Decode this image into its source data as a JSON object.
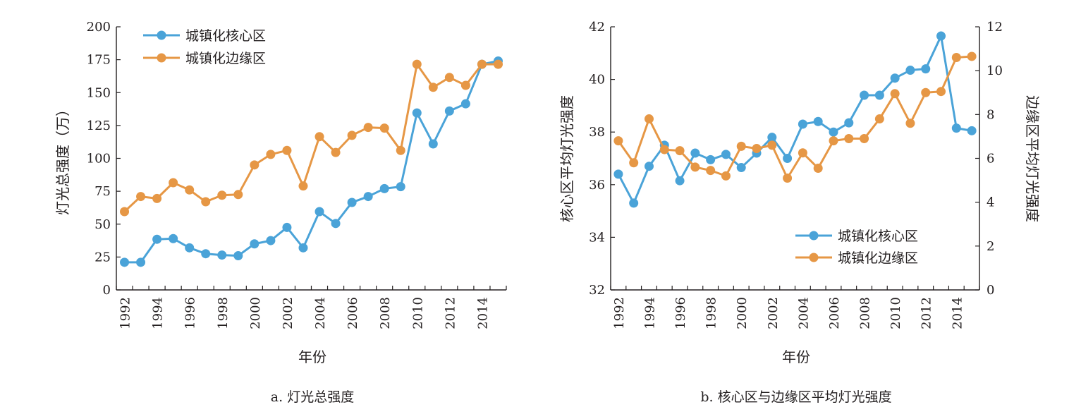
{
  "colors": {
    "core": "#4aa3d8",
    "edge": "#e69745",
    "axis": "#231f20"
  },
  "chart_data": [
    {
      "type": "line",
      "caption": "a. 灯光总强度",
      "xlabel": "年份",
      "ylabel": "灯光总强度（万）",
      "x": [
        1992,
        1993,
        1994,
        1995,
        1996,
        1997,
        1998,
        1999,
        2000,
        2001,
        2002,
        2003,
        2004,
        2005,
        2006,
        2007,
        2008,
        2009,
        2010,
        2011,
        2012,
        2013,
        2014,
        2015
      ],
      "x_tick_labels": [
        "1992",
        "1994",
        "1996",
        "1998",
        "2000",
        "2002",
        "2004",
        "2006",
        "2008",
        "2010",
        "2012",
        "2014"
      ],
      "ylim": [
        0,
        200
      ],
      "y_tick_labels": [
        "0",
        "25",
        "50",
        "75",
        "100",
        "125",
        "150",
        "175",
        "200"
      ],
      "grid": false,
      "legend_position": "top-left",
      "series": [
        {
          "name": "城镇化核心区",
          "color_key": "core",
          "axis": "left",
          "values": [
            21,
            21,
            38.5,
            39,
            32,
            27.5,
            26.5,
            26,
            35,
            37.5,
            47.5,
            32,
            59.5,
            50.5,
            66.5,
            71,
            77,
            78.5,
            134.5,
            111,
            136,
            141.5,
            171.5,
            174
          ]
        },
        {
          "name": "城镇化边缘区",
          "color_key": "edge",
          "axis": "left",
          "values": [
            59.5,
            71,
            69.5,
            81.5,
            76,
            67,
            72,
            72.5,
            95,
            103,
            106,
            79,
            116.5,
            104.5,
            117.5,
            123.5,
            123,
            106,
            171.5,
            154,
            161.5,
            155.5,
            171.5,
            171.5
          ]
        }
      ]
    },
    {
      "type": "line",
      "caption": "b. 核心区与边缘区平均灯光强度",
      "xlabel": "年份",
      "ylabel": "核心区平均灯光强度",
      "y2label": "边缘区平均灯光强度",
      "x": [
        1992,
        1993,
        1994,
        1995,
        1996,
        1997,
        1998,
        1999,
        2000,
        2001,
        2002,
        2003,
        2004,
        2005,
        2006,
        2007,
        2008,
        2009,
        2010,
        2011,
        2012,
        2013,
        2014,
        2015
      ],
      "x_tick_labels": [
        "1992",
        "1994",
        "1996",
        "1998",
        "2000",
        "2002",
        "2004",
        "2006",
        "2008",
        "2010",
        "2012",
        "2014"
      ],
      "ylim": [
        32,
        42
      ],
      "y_tick_labels": [
        "32",
        "34",
        "36",
        "38",
        "40",
        "42"
      ],
      "y2lim": [
        0,
        12
      ],
      "y2_tick_labels": [
        "0",
        "2",
        "4",
        "6",
        "8",
        "10",
        "12"
      ],
      "grid": false,
      "legend_position": "bottom-right",
      "series": [
        {
          "name": "城镇化核心区",
          "color_key": "core",
          "axis": "left",
          "values": [
            36.4,
            35.3,
            36.7,
            37.5,
            36.15,
            37.2,
            36.95,
            37.15,
            36.65,
            37.2,
            37.8,
            37,
            38.3,
            38.4,
            38,
            38.35,
            39.4,
            39.4,
            40.05,
            40.35,
            40.4,
            41.65,
            38.15,
            38.05
          ]
        },
        {
          "name": "城镇化边缘区",
          "color_key": "edge",
          "axis": "right",
          "values": [
            6.8,
            5.8,
            7.8,
            6.4,
            6.35,
            5.6,
            5.45,
            5.2,
            6.55,
            6.45,
            6.6,
            5.1,
            6.25,
            5.55,
            6.8,
            6.9,
            6.9,
            7.8,
            8.95,
            7.6,
            9,
            9.05,
            10.6,
            10.65
          ]
        }
      ]
    }
  ]
}
